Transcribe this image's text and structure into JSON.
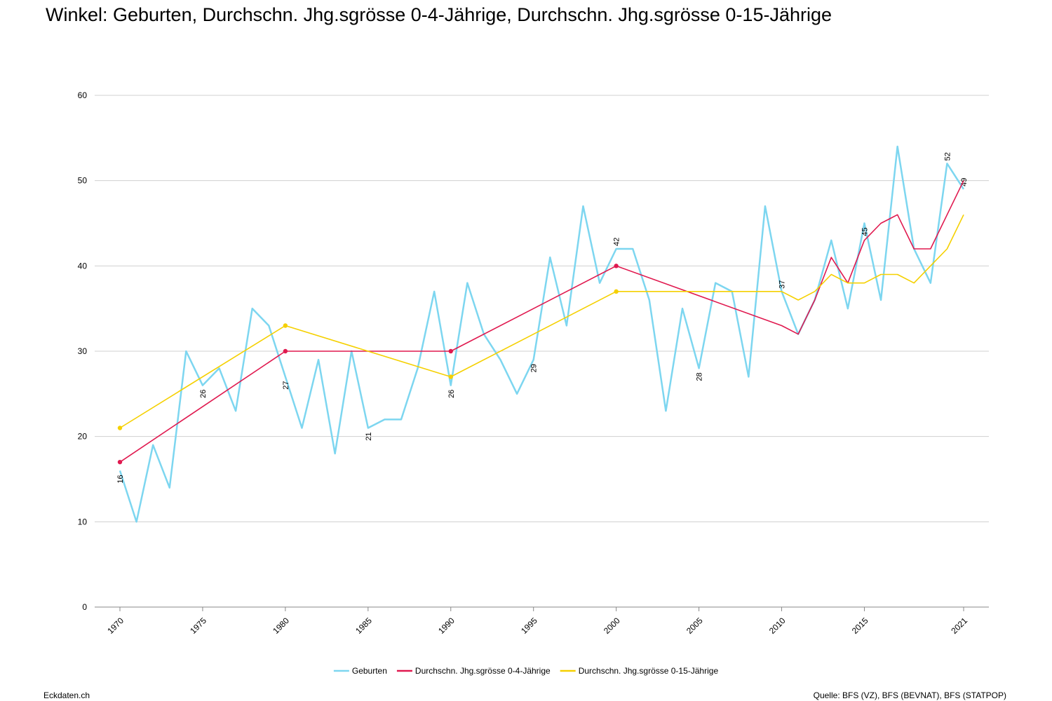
{
  "chart_data": {
    "type": "line",
    "title": "Winkel: Geburten, Durchschn. Jhg.sgrösse 0-4-Jährige, Durchschn. Jhg.sgrösse 0-15-Jährige",
    "footer_left": "Eckdaten.ch",
    "source": "Quelle: BFS (VZ), BFS (BEVNAT), BFS (STATPOP)",
    "xlim": [
      1970,
      2021
    ],
    "xticks": [
      1970,
      1975,
      1980,
      1985,
      1990,
      1995,
      2000,
      2005,
      2010,
      2015,
      2021
    ],
    "ylim": [
      0,
      60
    ],
    "yticks": [
      0,
      10,
      20,
      30,
      40,
      50,
      60
    ],
    "grid": true,
    "legend": "bottom",
    "series": [
      {
        "name": "Geburten",
        "color": "#7dd6f0",
        "x": [
          1970,
          1971,
          1972,
          1973,
          1974,
          1975,
          1976,
          1977,
          1978,
          1979,
          1980,
          1981,
          1982,
          1983,
          1984,
          1985,
          1986,
          1987,
          1988,
          1989,
          1990,
          1991,
          1992,
          1993,
          1994,
          1995,
          1996,
          1997,
          1998,
          1999,
          2000,
          2001,
          2002,
          2003,
          2004,
          2005,
          2006,
          2007,
          2008,
          2009,
          2010,
          2011,
          2012,
          2013,
          2014,
          2015,
          2016,
          2017,
          2018,
          2019,
          2020,
          2021
        ],
        "values": [
          16,
          10,
          19,
          14,
          30,
          26,
          28,
          23,
          35,
          33,
          27,
          21,
          29,
          18,
          30,
          21,
          22,
          22,
          28,
          37,
          26,
          38,
          32,
          29,
          25,
          29,
          41,
          33,
          47,
          38,
          42,
          42,
          36,
          23,
          35,
          28,
          38,
          37,
          27,
          47,
          37,
          32,
          36,
          43,
          35,
          45,
          36,
          54,
          42,
          38,
          52,
          49
        ]
      },
      {
        "name": "Durchschn. Jhg.sgrösse 0-4-Jährige",
        "color": "#e0194f",
        "x": [
          1970,
          1980,
          1990,
          2000,
          2010,
          2011,
          2012,
          2013,
          2014,
          2015,
          2016,
          2017,
          2018,
          2019,
          2020,
          2021
        ],
        "values": [
          17,
          30,
          30,
          40,
          33,
          32,
          36,
          41,
          38,
          43,
          45,
          46,
          42,
          42,
          46,
          50
        ]
      },
      {
        "name": "Durchschn. Jhg.sgrösse 0-15-Jährige",
        "color": "#f5d000",
        "x": [
          1970,
          1980,
          1990,
          2000,
          2010,
          2011,
          2012,
          2013,
          2014,
          2015,
          2016,
          2017,
          2018,
          2019,
          2020,
          2021
        ],
        "values": [
          21,
          33,
          27,
          37,
          37,
          36,
          37,
          39,
          38,
          38,
          39,
          39,
          38,
          40,
          42,
          46
        ]
      }
    ]
  }
}
